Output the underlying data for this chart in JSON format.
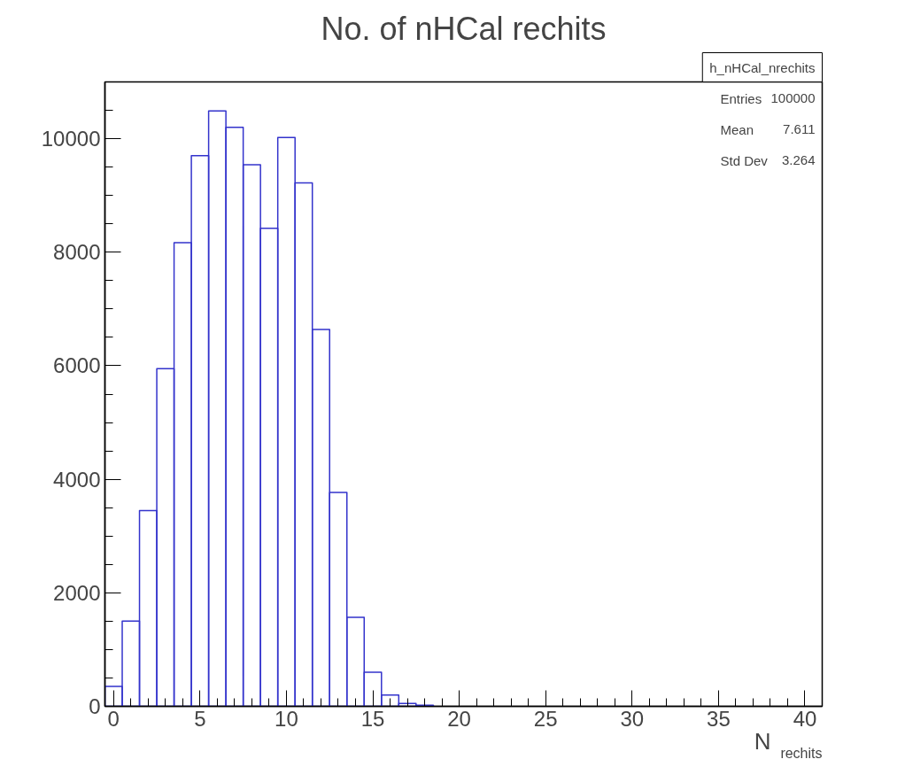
{
  "chart_data": {
    "type": "histogram",
    "title": "No. of nHCal rechits",
    "xlabel": "N$_{rechits}$",
    "bins": [
      -0.5,
      0.5,
      1.5,
      2.5,
      3.5,
      4.5,
      5.5,
      6.5,
      7.5,
      8.5,
      9.5,
      10.5,
      11.5,
      12.5,
      13.5,
      14.5,
      15.5,
      16.5,
      17.5,
      18.5
    ],
    "values": [
      350,
      1500,
      3450,
      5950,
      8170,
      9700,
      10490,
      10200,
      9540,
      8420,
      10020,
      9220,
      6640,
      3770,
      1570,
      600,
      200,
      50,
      20
    ],
    "color": "#3333cc",
    "xlim": [
      -0.5,
      41
    ],
    "ylim": [
      0,
      11000
    ],
    "xticks": [
      0,
      5,
      10,
      15,
      20,
      25,
      30,
      35,
      40
    ],
    "yticks": [
      0,
      2000,
      4000,
      6000,
      8000,
      10000
    ],
    "annotations": [
      "h_nHCal_nrechits",
      "Entries 100000",
      "Mean 7.611",
      "Std Dev 3.264"
    ],
    "grid": false
  }
}
